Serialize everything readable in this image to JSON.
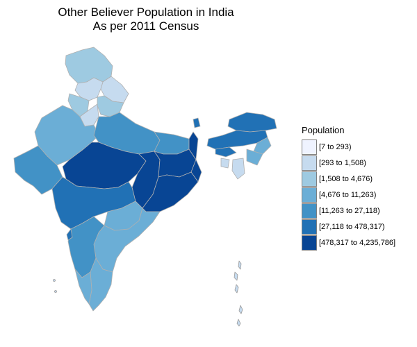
{
  "title_line1": "Other Believer Population in India",
  "title_line2": "As per 2011 Census",
  "legend": {
    "title": "Population",
    "items": [
      {
        "label": "[7 to 293)",
        "color": "#eff3ff"
      },
      {
        "label": "[293 to 1,508)",
        "color": "#c6dbef"
      },
      {
        "label": "[1,508 to 4,676)",
        "color": "#9ecae1"
      },
      {
        "label": "[4,676 to 11,263)",
        "color": "#6baed6"
      },
      {
        "label": "[11,263 to 27,118)",
        "color": "#4292c6"
      },
      {
        "label": "[27,118 to 478,317)",
        "color": "#2171b5"
      },
      {
        "label": "[478,317 to 4,235,786]",
        "color": "#084594"
      }
    ]
  }
}
